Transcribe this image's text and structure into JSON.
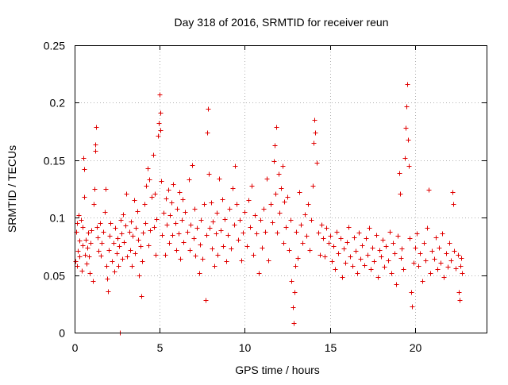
{
  "chart_data": {
    "type": "scatter",
    "title": "Day 318 of 2016, SRMTID for receiver reun",
    "xlabel": "GPS time / hours",
    "ylabel": "SRMTID / TECUs",
    "xlim": [
      0,
      24.2
    ],
    "ylim": [
      0,
      0.25
    ],
    "x_ticks": [
      0,
      5,
      10,
      15,
      20
    ],
    "x_tick_labels": [
      "0",
      "5",
      "10",
      "15",
      "20"
    ],
    "y_ticks": [
      0,
      0.05,
      0.1,
      0.15,
      0.2,
      0.25
    ],
    "y_tick_labels": [
      "0",
      "0.05",
      "0.1",
      "0.15",
      "0.2",
      "0.25"
    ],
    "grid": true,
    "marker": "+",
    "color": "#e00000",
    "series": [
      {
        "name": "SRMTID",
        "points": [
          [
            0.05,
            0.062
          ],
          [
            0.1,
            0.088
          ],
          [
            0.12,
            0.058
          ],
          [
            0.15,
            0.095
          ],
          [
            0.2,
            0.071
          ],
          [
            0.22,
            0.102
          ],
          [
            0.28,
            0.066
          ],
          [
            0.3,
            0.08
          ],
          [
            0.35,
            0.098
          ],
          [
            0.4,
            0.054
          ],
          [
            0.45,
            0.076
          ],
          [
            0.48,
            0.092
          ],
          [
            0.52,
            0.152
          ],
          [
            0.55,
            0.142
          ],
          [
            0.58,
            0.118
          ],
          [
            0.6,
            0.068
          ],
          [
            0.65,
            0.081
          ],
          [
            0.7,
            0.06
          ],
          [
            0.75,
            0.074
          ],
          [
            0.8,
            0.087
          ],
          [
            0.85,
            0.066
          ],
          [
            0.9,
            0.052
          ],
          [
            0.95,
            0.078
          ],
          [
            1.0,
            0.089
          ],
          [
            1.05,
            0.045
          ],
          [
            1.1,
            0.112
          ],
          [
            1.15,
            0.125
          ],
          [
            1.2,
            0.158
          ],
          [
            1.22,
            0.164
          ],
          [
            1.25,
            0.179
          ],
          [
            1.3,
            0.092
          ],
          [
            1.35,
            0.083
          ],
          [
            1.4,
            0.071
          ],
          [
            1.5,
            0.095
          ],
          [
            1.55,
            0.067
          ],
          [
            1.6,
            0.078
          ],
          [
            1.7,
            0.088
          ],
          [
            1.75,
            0.105
          ],
          [
            1.8,
            0.125
          ],
          [
            1.85,
            0.058
          ],
          [
            1.9,
            0.047
          ],
          [
            1.95,
            0.036
          ],
          [
            2.0,
            0.072
          ],
          [
            2.05,
            0.084
          ],
          [
            2.1,
            0.095
          ],
          [
            2.2,
            0.062
          ],
          [
            2.3,
            0.078
          ],
          [
            2.35,
            0.053
          ],
          [
            2.4,
            0.091
          ],
          [
            2.45,
            0.069
          ],
          [
            2.5,
            0.082
          ],
          [
            2.55,
            0.058
          ],
          [
            2.6,
            0.075
          ],
          [
            2.65,
            0.0
          ],
          [
            2.7,
            0.098
          ],
          [
            2.75,
            0.086
          ],
          [
            2.8,
            0.064
          ],
          [
            2.85,
            0.103
          ],
          [
            2.9,
            0.079
          ],
          [
            3.0,
            0.093
          ],
          [
            3.05,
            0.121
          ],
          [
            3.1,
            0.066
          ],
          [
            3.2,
            0.088
          ],
          [
            3.25,
            0.072
          ],
          [
            3.3,
            0.097
          ],
          [
            3.35,
            0.058
          ],
          [
            3.4,
            0.084
          ],
          [
            3.5,
            0.115
          ],
          [
            3.55,
            0.069
          ],
          [
            3.6,
            0.091
          ],
          [
            3.7,
            0.106
          ],
          [
            3.75,
            0.081
          ],
          [
            3.8,
            0.05
          ],
          [
            3.85,
            0.075
          ],
          [
            3.9,
            0.032
          ],
          [
            3.95,
            0.062
          ],
          [
            4.0,
            0.087
          ],
          [
            4.1,
            0.112
          ],
          [
            4.15,
            0.095
          ],
          [
            4.2,
            0.128
          ],
          [
            4.3,
            0.143
          ],
          [
            4.35,
            0.076
          ],
          [
            4.4,
            0.133
          ],
          [
            4.45,
            0.089
          ],
          [
            4.5,
            0.118
          ],
          [
            4.6,
            0.155
          ],
          [
            4.65,
            0.092
          ],
          [
            4.7,
            0.121
          ],
          [
            4.75,
            0.068
          ],
          [
            4.8,
            0.099
          ],
          [
            4.9,
            0.171
          ],
          [
            4.95,
            0.182
          ],
          [
            5.0,
            0.207
          ],
          [
            5.02,
            0.191
          ],
          [
            5.05,
            0.176
          ],
          [
            5.1,
            0.132
          ],
          [
            5.15,
            0.085
          ],
          [
            5.2,
            0.104
          ],
          [
            5.3,
            0.068
          ],
          [
            5.35,
            0.117
          ],
          [
            5.4,
            0.094
          ],
          [
            5.5,
            0.124
          ],
          [
            5.55,
            0.078
          ],
          [
            5.6,
            0.102
          ],
          [
            5.7,
            0.113
          ],
          [
            5.75,
            0.085
          ],
          [
            5.8,
            0.129
          ],
          [
            5.9,
            0.095
          ],
          [
            5.95,
            0.072
          ],
          [
            6.0,
            0.108
          ],
          [
            6.1,
            0.086
          ],
          [
            6.15,
            0.122
          ],
          [
            6.2,
            0.064
          ],
          [
            6.3,
            0.098
          ],
          [
            6.35,
            0.116
          ],
          [
            6.4,
            0.079
          ],
          [
            6.5,
            0.105
          ],
          [
            6.6,
            0.088
          ],
          [
            6.7,
            0.133
          ],
          [
            6.75,
            0.072
          ],
          [
            6.8,
            0.094
          ],
          [
            6.9,
            0.146
          ],
          [
            7.0,
            0.082
          ],
          [
            7.05,
            0.108
          ],
          [
            7.1,
            0.067
          ],
          [
            7.2,
            0.091
          ],
          [
            7.3,
            0.052
          ],
          [
            7.35,
            0.077
          ],
          [
            7.4,
            0.098
          ],
          [
            7.5,
            0.064
          ],
          [
            7.6,
            0.112
          ],
          [
            7.7,
            0.028
          ],
          [
            7.75,
            0.085
          ],
          [
            7.8,
            0.174
          ],
          [
            7.85,
            0.195
          ],
          [
            7.9,
            0.138
          ],
          [
            7.95,
            0.091
          ],
          [
            8.0,
            0.113
          ],
          [
            8.05,
            0.073
          ],
          [
            8.1,
            0.097
          ],
          [
            8.2,
            0.058
          ],
          [
            8.3,
            0.086
          ],
          [
            8.35,
            0.104
          ],
          [
            8.4,
            0.068
          ],
          [
            8.5,
            0.134
          ],
          [
            8.6,
            0.089
          ],
          [
            8.65,
            0.116
          ],
          [
            8.7,
            0.075
          ],
          [
            8.8,
            0.099
          ],
          [
            8.9,
            0.062
          ],
          [
            9.0,
            0.085
          ],
          [
            9.1,
            0.108
          ],
          [
            9.2,
            0.073
          ],
          [
            9.3,
            0.126
          ],
          [
            9.35,
            0.094
          ],
          [
            9.4,
            0.145
          ],
          [
            9.5,
            0.112
          ],
          [
            9.6,
            0.081
          ],
          [
            9.7,
            0.098
          ],
          [
            9.8,
            0.063
          ],
          [
            9.9,
            0.087
          ],
          [
            10.0,
            0.105
          ],
          [
            10.1,
            0.075
          ],
          [
            10.2,
            0.115
          ],
          [
            10.3,
            0.092
          ],
          [
            10.4,
            0.128
          ],
          [
            10.5,
            0.068
          ],
          [
            10.6,
            0.102
          ],
          [
            10.7,
            0.086
          ],
          [
            10.8,
            0.052
          ],
          [
            10.9,
            0.098
          ],
          [
            11.0,
            0.074
          ],
          [
            11.1,
            0.108
          ],
          [
            11.2,
            0.088
          ],
          [
            11.3,
            0.134
          ],
          [
            11.4,
            0.063
          ],
          [
            11.5,
            0.112
          ],
          [
            11.6,
            0.096
          ],
          [
            11.7,
            0.149
          ],
          [
            11.75,
            0.163
          ],
          [
            11.8,
            0.121
          ],
          [
            11.85,
            0.179
          ],
          [
            11.9,
            0.087
          ],
          [
            12.0,
            0.138
          ],
          [
            12.05,
            0.104
          ],
          [
            12.1,
            0.126
          ],
          [
            12.2,
            0.145
          ],
          [
            12.25,
            0.078
          ],
          [
            12.3,
            0.114
          ],
          [
            12.4,
            0.092
          ],
          [
            12.5,
            0.118
          ],
          [
            12.6,
            0.072
          ],
          [
            12.7,
            0.098
          ],
          [
            12.75,
            0.045
          ],
          [
            12.8,
            0.022
          ],
          [
            12.85,
            0.008
          ],
          [
            12.9,
            0.035
          ],
          [
            12.95,
            0.058
          ],
          [
            13.0,
            0.088
          ],
          [
            13.1,
            0.065
          ],
          [
            13.2,
            0.122
          ],
          [
            13.3,
            0.094
          ],
          [
            13.4,
            0.078
          ],
          [
            13.5,
            0.103
          ],
          [
            13.6,
            0.084
          ],
          [
            13.7,
            0.112
          ],
          [
            13.8,
            0.072
          ],
          [
            13.9,
            0.098
          ],
          [
            14.0,
            0.128
          ],
          [
            14.05,
            0.165
          ],
          [
            14.1,
            0.185
          ],
          [
            14.15,
            0.174
          ],
          [
            14.2,
            0.148
          ],
          [
            14.3,
            0.087
          ],
          [
            14.4,
            0.068
          ],
          [
            14.5,
            0.094
          ],
          [
            14.6,
            0.082
          ],
          [
            14.7,
            0.066
          ],
          [
            14.8,
            0.091
          ],
          [
            14.9,
            0.078
          ],
          [
            15.0,
            0.084
          ],
          [
            15.1,
            0.062
          ],
          [
            15.2,
            0.075
          ],
          [
            15.3,
            0.055
          ],
          [
            15.4,
            0.088
          ],
          [
            15.5,
            0.069
          ],
          [
            15.6,
            0.082
          ],
          [
            15.7,
            0.048
          ],
          [
            15.8,
            0.073
          ],
          [
            15.9,
            0.061
          ],
          [
            16.0,
            0.079
          ],
          [
            16.1,
            0.092
          ],
          [
            16.2,
            0.066
          ],
          [
            16.3,
            0.058
          ],
          [
            16.4,
            0.083
          ],
          [
            16.5,
            0.071
          ],
          [
            16.6,
            0.052
          ],
          [
            16.7,
            0.087
          ],
          [
            16.8,
            0.064
          ],
          [
            16.9,
            0.076
          ],
          [
            17.0,
            0.059
          ],
          [
            17.1,
            0.082
          ],
          [
            17.2,
            0.068
          ],
          [
            17.3,
            0.091
          ],
          [
            17.4,
            0.055
          ],
          [
            17.5,
            0.074
          ],
          [
            17.6,
            0.062
          ],
          [
            17.7,
            0.085
          ],
          [
            17.8,
            0.048
          ],
          [
            17.9,
            0.072
          ],
          [
            18.0,
            0.066
          ],
          [
            18.1,
            0.081
          ],
          [
            18.2,
            0.057
          ],
          [
            18.3,
            0.075
          ],
          [
            18.4,
            0.063
          ],
          [
            18.5,
            0.088
          ],
          [
            18.6,
            0.052
          ],
          [
            18.7,
            0.078
          ],
          [
            18.8,
            0.069
          ],
          [
            18.9,
            0.042
          ],
          [
            19.0,
            0.084
          ],
          [
            19.05,
            0.139
          ],
          [
            19.1,
            0.121
          ],
          [
            19.15,
            0.065
          ],
          [
            19.2,
            0.073
          ],
          [
            19.3,
            0.055
          ],
          [
            19.4,
            0.152
          ],
          [
            19.45,
            0.178
          ],
          [
            19.5,
            0.197
          ],
          [
            19.55,
            0.216
          ],
          [
            19.6,
            0.168
          ],
          [
            19.65,
            0.145
          ],
          [
            19.7,
            0.082
          ],
          [
            19.75,
            0.035
          ],
          [
            19.8,
            0.023
          ],
          [
            19.9,
            0.061
          ],
          [
            20.0,
            0.074
          ],
          [
            20.1,
            0.086
          ],
          [
            20.2,
            0.058
          ],
          [
            20.3,
            0.069
          ],
          [
            20.4,
            0.045
          ],
          [
            20.5,
            0.078
          ],
          [
            20.6,
            0.063
          ],
          [
            20.7,
            0.091
          ],
          [
            20.8,
            0.124
          ],
          [
            20.9,
            0.052
          ],
          [
            21.0,
            0.071
          ],
          [
            21.1,
            0.064
          ],
          [
            21.2,
            0.083
          ],
          [
            21.3,
            0.055
          ],
          [
            21.4,
            0.074
          ],
          [
            21.5,
            0.061
          ],
          [
            21.6,
            0.086
          ],
          [
            21.7,
            0.048
          ],
          [
            21.8,
            0.069
          ],
          [
            21.9,
            0.057
          ],
          [
            22.0,
            0.078
          ],
          [
            22.1,
            0.063
          ],
          [
            22.2,
            0.122
          ],
          [
            22.25,
            0.112
          ],
          [
            22.3,
            0.071
          ],
          [
            22.4,
            0.056
          ],
          [
            22.5,
            0.068
          ],
          [
            22.55,
            0.035
          ],
          [
            22.6,
            0.028
          ],
          [
            22.65,
            0.058
          ],
          [
            22.7,
            0.065
          ],
          [
            22.75,
            0.052
          ]
        ]
      }
    ]
  }
}
